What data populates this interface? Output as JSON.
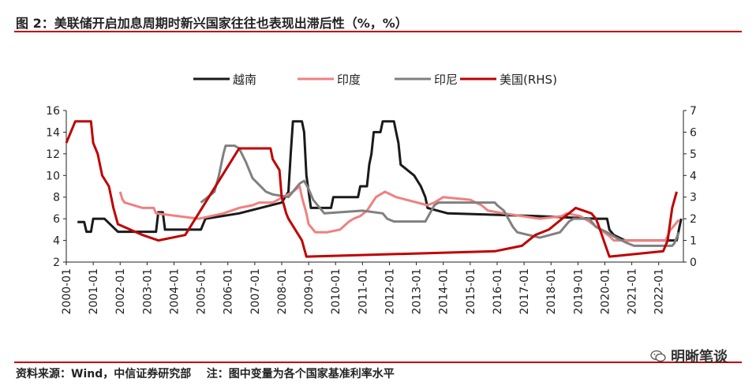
{
  "title": "图 2：美联储开启加息周期时新兴国家往往也表现出滞后性（%，%）",
  "footer": {
    "source": "资料来源：Wind，中信证券研究部",
    "note": "注：图中变量为各个国家基准利率水平"
  },
  "watermark": {
    "text": "明晰笔谈",
    "icon": "wechat-icon"
  },
  "colors": {
    "accent": "#c00000"
  },
  "chart_data": {
    "type": "line",
    "title": "",
    "xlabel": "",
    "ylabel": "",
    "x_ticks": [
      "2000-01",
      "2001-01",
      "2002-01",
      "2003-01",
      "2004-01",
      "2005-01",
      "2006-01",
      "2007-01",
      "2008-01",
      "2009-01",
      "2010-01",
      "2011-01",
      "2012-01",
      "2013-01",
      "2014-01",
      "2015-01",
      "2016-01",
      "2017-01",
      "2018-01",
      "2019-01",
      "2020-01",
      "2021-01",
      "2022-01"
    ],
    "x_range": [
      "2000-01",
      "2022-12"
    ],
    "y_left": {
      "ticks": [
        2,
        4,
        6,
        8,
        10,
        12,
        14,
        16
      ],
      "range": [
        2,
        16
      ]
    },
    "y_right": {
      "ticks": [
        0,
        1,
        2,
        3,
        4,
        5,
        6,
        7
      ],
      "range": [
        0,
        7
      ]
    },
    "grid": false,
    "legend_position": "top",
    "series": [
      {
        "name": "越南",
        "color": "#1a1a1a",
        "axis": "left",
        "data": [
          [
            "2000-06",
            5.7
          ],
          [
            "2000-09",
            5.7
          ],
          [
            "2000-10",
            4.8
          ],
          [
            "2000-12",
            4.8
          ],
          [
            "2001-01",
            6.0
          ],
          [
            "2001-06",
            6.0
          ],
          [
            "2001-10",
            5.2
          ],
          [
            "2001-12",
            4.8
          ],
          [
            "2003-05",
            4.8
          ],
          [
            "2003-06",
            6.6
          ],
          [
            "2003-08",
            6.6
          ],
          [
            "2003-09",
            5.0
          ],
          [
            "2005-01",
            5.0
          ],
          [
            "2005-03",
            6.0
          ],
          [
            "2006-06",
            6.5
          ],
          [
            "2008-01",
            7.5
          ],
          [
            "2008-04",
            8.5
          ],
          [
            "2008-05",
            12.0
          ],
          [
            "2008-06",
            15.0
          ],
          [
            "2008-10",
            15.0
          ],
          [
            "2008-11",
            14.0
          ],
          [
            "2008-12",
            10.0
          ],
          [
            "2009-01",
            8.5
          ],
          [
            "2009-02",
            7.0
          ],
          [
            "2009-11",
            7.0
          ],
          [
            "2009-12",
            8.0
          ],
          [
            "2010-11",
            8.0
          ],
          [
            "2010-12",
            9.0
          ],
          [
            "2011-03",
            9.0
          ],
          [
            "2011-04",
            11.0
          ],
          [
            "2011-05",
            12.0
          ],
          [
            "2011-06",
            14.0
          ],
          [
            "2011-09",
            14.0
          ],
          [
            "2011-10",
            15.0
          ],
          [
            "2012-03",
            15.0
          ],
          [
            "2012-04",
            14.0
          ],
          [
            "2012-05",
            13.0
          ],
          [
            "2012-06",
            11.0
          ],
          [
            "2012-12",
            10.0
          ],
          [
            "2013-03",
            9.0
          ],
          [
            "2013-05",
            8.0
          ],
          [
            "2013-06",
            7.0
          ],
          [
            "2014-03",
            6.5
          ],
          [
            "2017-07",
            6.25
          ],
          [
            "2019-09",
            6.0
          ],
          [
            "2020-02",
            6.0
          ],
          [
            "2020-03",
            5.0
          ],
          [
            "2020-05",
            4.5
          ],
          [
            "2020-10",
            4.0
          ],
          [
            "2022-09",
            4.0
          ],
          [
            "2022-10",
            5.0
          ],
          [
            "2022-11",
            6.0
          ]
        ]
      },
      {
        "name": "印度",
        "color": "#f08080",
        "axis": "left",
        "data": [
          [
            "2002-01",
            8.5
          ],
          [
            "2002-02",
            7.8
          ],
          [
            "2002-03",
            7.5
          ],
          [
            "2002-11",
            7.0
          ],
          [
            "2003-04",
            7.0
          ],
          [
            "2003-05",
            6.5
          ],
          [
            "2004-12",
            6.0
          ],
          [
            "2005-11",
            6.5
          ],
          [
            "2006-06",
            7.0
          ],
          [
            "2006-12",
            7.25
          ],
          [
            "2007-03",
            7.5
          ],
          [
            "2007-09",
            7.5
          ],
          [
            "2008-06",
            8.5
          ],
          [
            "2008-09",
            9.0
          ],
          [
            "2008-10",
            8.0
          ],
          [
            "2008-12",
            6.5
          ],
          [
            "2009-01",
            5.5
          ],
          [
            "2009-04",
            4.75
          ],
          [
            "2009-09",
            4.75
          ],
          [
            "2010-03",
            5.0
          ],
          [
            "2010-07",
            5.75
          ],
          [
            "2010-09",
            6.0
          ],
          [
            "2010-12",
            6.25
          ],
          [
            "2011-03",
            6.75
          ],
          [
            "2011-07",
            8.0
          ],
          [
            "2011-11",
            8.5
          ],
          [
            "2012-04",
            8.0
          ],
          [
            "2013-06",
            7.25
          ],
          [
            "2013-09",
            7.5
          ],
          [
            "2014-01",
            8.0
          ],
          [
            "2015-01",
            7.75
          ],
          [
            "2015-06",
            7.25
          ],
          [
            "2015-09",
            6.75
          ],
          [
            "2016-04",
            6.5
          ],
          [
            "2017-08",
            6.0
          ],
          [
            "2018-06",
            6.25
          ],
          [
            "2018-08",
            6.5
          ],
          [
            "2019-02",
            6.25
          ],
          [
            "2019-06",
            5.75
          ],
          [
            "2019-10",
            5.15
          ],
          [
            "2020-03",
            4.4
          ],
          [
            "2020-05",
            4.0
          ],
          [
            "2022-04",
            4.0
          ],
          [
            "2022-05",
            4.4
          ],
          [
            "2022-06",
            4.9
          ],
          [
            "2022-08",
            5.4
          ],
          [
            "2022-10",
            5.9
          ]
        ]
      },
      {
        "name": "印尼",
        "color": "#808080",
        "axis": "left",
        "data": [
          [
            "2005-01",
            7.5
          ],
          [
            "2005-07",
            8.5
          ],
          [
            "2005-09",
            10.0
          ],
          [
            "2005-11",
            12.0
          ],
          [
            "2005-12",
            12.75
          ],
          [
            "2006-04",
            12.75
          ],
          [
            "2006-06",
            12.5
          ],
          [
            "2006-09",
            11.25
          ],
          [
            "2006-12",
            9.75
          ],
          [
            "2007-06",
            8.5
          ],
          [
            "2007-09",
            8.25
          ],
          [
            "2008-04",
            8.0
          ],
          [
            "2008-06",
            8.5
          ],
          [
            "2008-09",
            9.25
          ],
          [
            "2008-11",
            9.5
          ],
          [
            "2009-01",
            8.75
          ],
          [
            "2009-03",
            7.75
          ],
          [
            "2009-06",
            7.0
          ],
          [
            "2009-08",
            6.5
          ],
          [
            "2011-01",
            6.75
          ],
          [
            "2011-10",
            6.5
          ],
          [
            "2011-12",
            6.0
          ],
          [
            "2012-03",
            5.75
          ],
          [
            "2013-05",
            5.75
          ],
          [
            "2013-07",
            6.5
          ],
          [
            "2013-09",
            7.25
          ],
          [
            "2013-11",
            7.5
          ],
          [
            "2015-12",
            7.5
          ],
          [
            "2016-01",
            7.25
          ],
          [
            "2016-04",
            6.75
          ],
          [
            "2016-08",
            5.25
          ],
          [
            "2016-10",
            4.75
          ],
          [
            "2017-08",
            4.25
          ],
          [
            "2018-05",
            4.75
          ],
          [
            "2018-07",
            5.25
          ],
          [
            "2018-09",
            5.75
          ],
          [
            "2018-11",
            6.0
          ],
          [
            "2019-06",
            6.0
          ],
          [
            "2019-09",
            5.25
          ],
          [
            "2020-02",
            4.75
          ],
          [
            "2020-06",
            4.25
          ],
          [
            "2020-11",
            3.75
          ],
          [
            "2021-02",
            3.5
          ],
          [
            "2022-07",
            3.5
          ],
          [
            "2022-08",
            3.75
          ],
          [
            "2022-10",
            4.75
          ]
        ]
      },
      {
        "name": "美国(RHS)",
        "color": "#c00000",
        "axis": "right",
        "data": [
          [
            "2000-01",
            5.5
          ],
          [
            "2000-03",
            6.0
          ],
          [
            "2000-05",
            6.5
          ],
          [
            "2000-12",
            6.5
          ],
          [
            "2001-01",
            5.5
          ],
          [
            "2001-03",
            5.0
          ],
          [
            "2001-05",
            4.0
          ],
          [
            "2001-08",
            3.5
          ],
          [
            "2001-09",
            3.0
          ],
          [
            "2001-10",
            2.5
          ],
          [
            "2001-12",
            1.75
          ],
          [
            "2002-11",
            1.25
          ],
          [
            "2003-06",
            1.0
          ],
          [
            "2004-06",
            1.25
          ],
          [
            "2004-12",
            2.25
          ],
          [
            "2005-06",
            3.25
          ],
          [
            "2005-12",
            4.25
          ],
          [
            "2006-06",
            5.25
          ],
          [
            "2007-08",
            5.25
          ],
          [
            "2007-09",
            4.75
          ],
          [
            "2007-12",
            4.25
          ],
          [
            "2008-01",
            3.0
          ],
          [
            "2008-03",
            2.25
          ],
          [
            "2008-04",
            2.0
          ],
          [
            "2008-10",
            1.0
          ],
          [
            "2008-12",
            0.25
          ],
          [
            "2015-12",
            0.5
          ],
          [
            "2016-12",
            0.75
          ],
          [
            "2017-03",
            1.0
          ],
          [
            "2017-06",
            1.25
          ],
          [
            "2017-12",
            1.5
          ],
          [
            "2018-03",
            1.75
          ],
          [
            "2018-06",
            2.0
          ],
          [
            "2018-09",
            2.25
          ],
          [
            "2018-12",
            2.5
          ],
          [
            "2019-07",
            2.25
          ],
          [
            "2019-09",
            2.0
          ],
          [
            "2019-10",
            1.75
          ],
          [
            "2020-03",
            0.25
          ],
          [
            "2022-03",
            0.5
          ],
          [
            "2022-05",
            1.0
          ],
          [
            "2022-06",
            1.75
          ],
          [
            "2022-07",
            2.5
          ],
          [
            "2022-09",
            3.25
          ]
        ]
      }
    ]
  }
}
